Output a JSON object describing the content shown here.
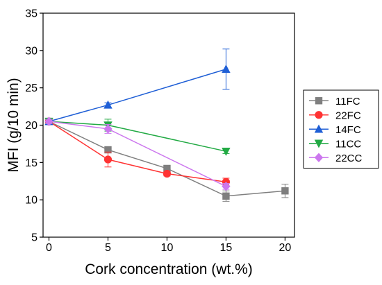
{
  "chart_data": {
    "type": "line",
    "xlabel": "Cork concentration (wt.%)",
    "ylabel": "MFI (g/10 min)",
    "xlim": [
      -0.5,
      20.8
    ],
    "ylim": [
      5,
      35
    ],
    "xticks": [
      0,
      5,
      10,
      15,
      20
    ],
    "yticks": [
      5,
      10,
      15,
      20,
      25,
      30,
      35
    ],
    "legend_position": "right",
    "series": [
      {
        "name": "11FC",
        "color": "#7f7f7f",
        "marker": "square",
        "x": [
          0,
          5,
          10,
          15,
          20
        ],
        "y": [
          20.5,
          16.7,
          14.2,
          10.5,
          11.2
        ],
        "err": [
          0.3,
          0.3,
          0.3,
          0.7,
          0.9
        ]
      },
      {
        "name": "22FC",
        "color": "#ff3333",
        "marker": "circle",
        "x": [
          0,
          5,
          10,
          15
        ],
        "y": [
          20.5,
          15.4,
          13.5,
          12.4
        ],
        "err": [
          0.3,
          1.0,
          0.3,
          0.5
        ]
      },
      {
        "name": "14FC",
        "color": "#1f5fd6",
        "marker": "triangle-up",
        "x": [
          0,
          5,
          15
        ],
        "y": [
          20.5,
          22.7,
          27.5
        ],
        "err": [
          0.3,
          0.3,
          2.7
        ]
      },
      {
        "name": "11CC",
        "color": "#22aa44",
        "marker": "triangle-down",
        "x": [
          0,
          5,
          15
        ],
        "y": [
          20.5,
          20.0,
          16.5
        ],
        "err": [
          0.3,
          0.8,
          0.3
        ]
      },
      {
        "name": "22CC",
        "color": "#cc77ee",
        "marker": "diamond",
        "x": [
          0,
          5,
          15
        ],
        "y": [
          20.5,
          19.5,
          11.8
        ],
        "err": [
          0.3,
          0.6,
          0.4
        ]
      }
    ]
  }
}
